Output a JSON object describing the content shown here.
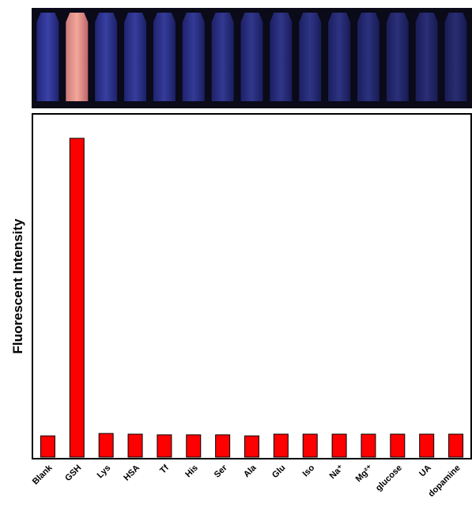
{
  "chart_data": {
    "type": "bar",
    "y_label": "Fluorescent Intensity",
    "categories": [
      "Blank",
      "GSH",
      "Lys",
      "HSA",
      "Tf",
      "His",
      "Ser",
      "Ala",
      "Glu",
      "Iso",
      "Na⁺",
      "Mg²⁺",
      "glucose",
      "UA",
      "dopamine"
    ],
    "values": [
      6.2,
      93.1,
      6.9,
      6.7,
      6.5,
      6.5,
      6.5,
      6.2,
      6.7,
      6.7,
      6.7,
      6.7,
      6.7,
      6.7,
      6.7
    ],
    "color": "#ff0000",
    "ylim": [
      0,
      100
    ]
  }
}
